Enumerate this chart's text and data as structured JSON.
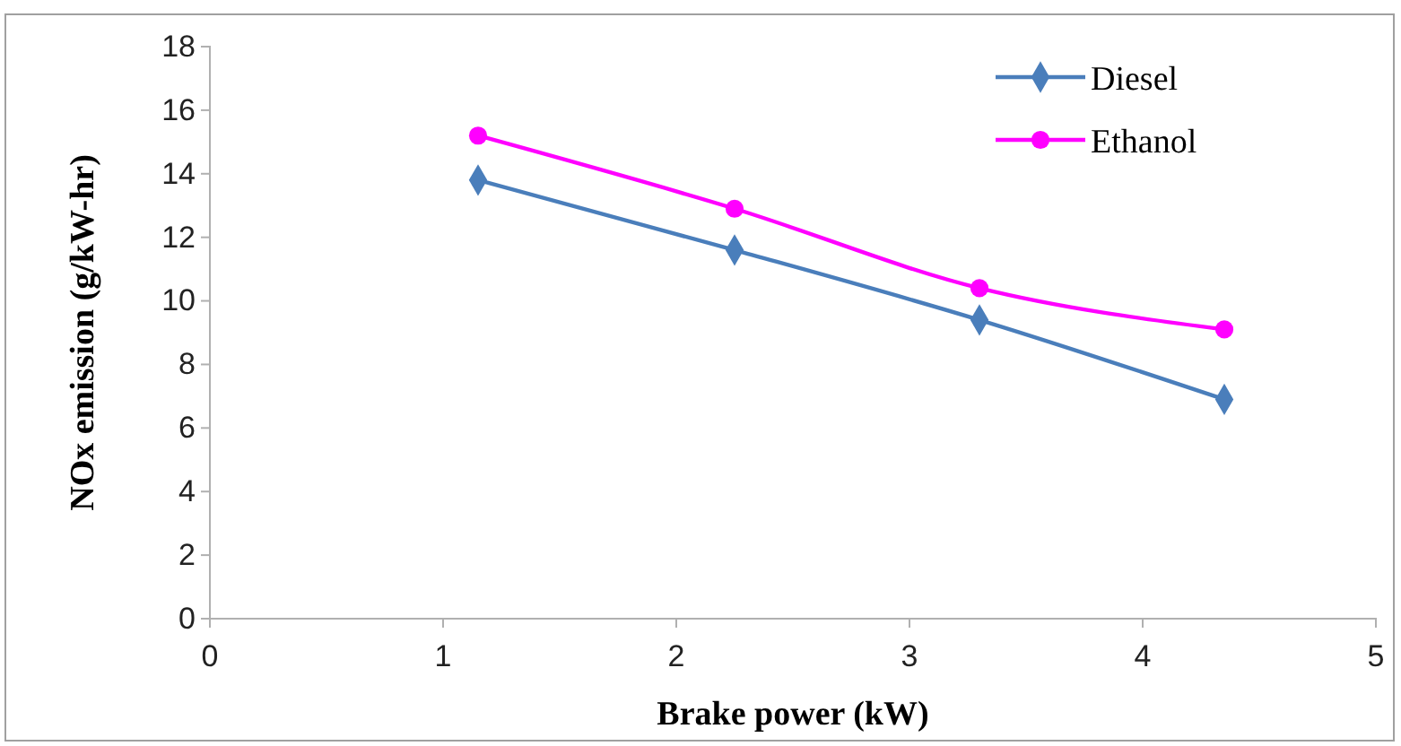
{
  "chart_data": {
    "type": "line",
    "xlabel": "Brake power (kW)",
    "ylabel": "NOx emission (g/kW-hr)",
    "x": [
      1.15,
      2.25,
      3.3,
      4.35
    ],
    "series": [
      {
        "name": "Diesel",
        "color": "#4a7ebb",
        "marker": "diamond",
        "values": [
          13.8,
          11.6,
          9.4,
          6.9
        ]
      },
      {
        "name": "Ethanol",
        "color": "#ff00ff",
        "marker": "circle",
        "values": [
          15.2,
          12.9,
          10.4,
          9.1
        ]
      }
    ],
    "xlim": [
      0,
      5
    ],
    "xticks": [
      0,
      1,
      2,
      3,
      4,
      5
    ],
    "ylim": [
      0,
      18
    ],
    "yticks": [
      0,
      2,
      4,
      6,
      8,
      10,
      12,
      14,
      16,
      18
    ],
    "grid": false,
    "legend": "top right"
  }
}
